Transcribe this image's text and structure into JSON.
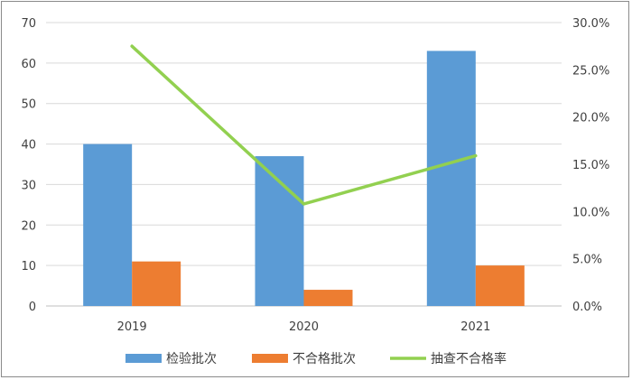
{
  "chart_data": {
    "type": "bar",
    "categories": [
      "2019",
      "2020",
      "2021"
    ],
    "series": [
      {
        "name": "检验批次",
        "type": "bar",
        "axis": "left",
        "values": [
          40,
          37,
          63
        ],
        "color": "#5b9bd5"
      },
      {
        "name": "不合格批次",
        "type": "bar",
        "axis": "left",
        "values": [
          11,
          4,
          10
        ],
        "color": "#ed7d31"
      },
      {
        "name": "抽查不合格率",
        "type": "line",
        "axis": "right",
        "values": [
          27.5,
          10.8,
          15.9
        ],
        "color": "#92d050"
      }
    ],
    "y_left": {
      "range": [
        0,
        70
      ],
      "ticks": [
        "0",
        "10",
        "20",
        "30",
        "40",
        "50",
        "60",
        "70"
      ]
    },
    "y_right": {
      "range": [
        0,
        30
      ],
      "ticks": [
        "0.0%",
        "5.0%",
        "10.0%",
        "15.0%",
        "20.0%",
        "25.0%",
        "30.0%"
      ]
    },
    "grid": true,
    "legend_position": "bottom",
    "title": "",
    "xlabel": "",
    "ylabel": ""
  }
}
